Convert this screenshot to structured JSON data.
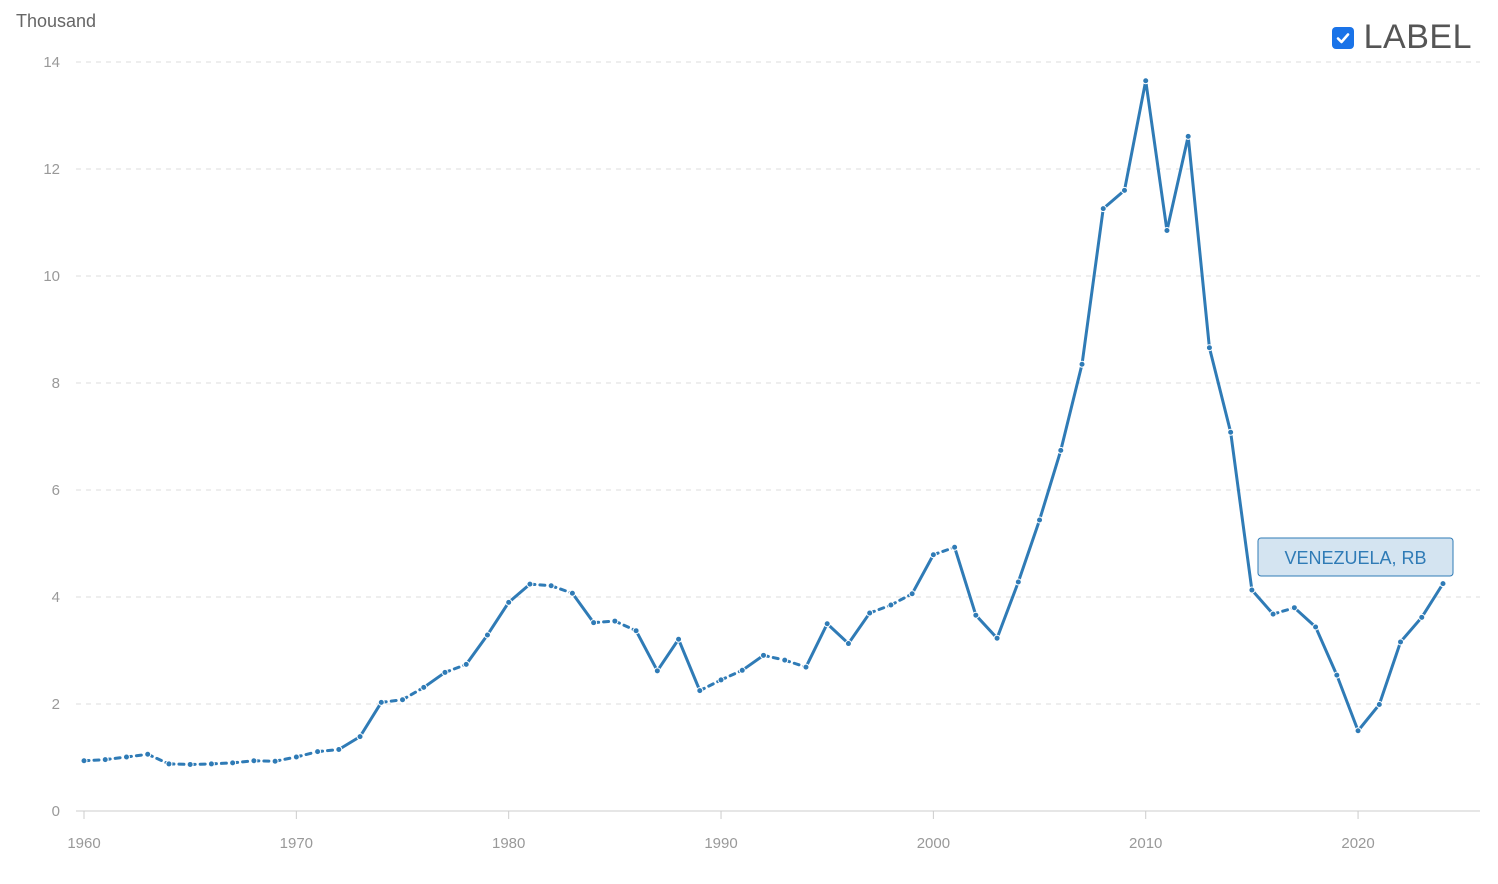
{
  "unit_label": "Thousand",
  "legend": {
    "checkbox_checked": true,
    "label": "LABEL",
    "checkbox_color": "#1a73e8"
  },
  "chart_data": {
    "type": "line",
    "title": "",
    "xlabel": "",
    "ylabel": "Thousand",
    "xlim": [
      1960,
      2024
    ],
    "ylim": [
      0,
      14
    ],
    "x_ticks": [
      "1960",
      "1970",
      "1980",
      "1990",
      "2000",
      "2010",
      "2020"
    ],
    "y_ticks": [
      "0",
      "2",
      "4",
      "6",
      "8",
      "10",
      "12",
      "14"
    ],
    "grid": true,
    "series": [
      {
        "name": "VENEZUELA, RB",
        "color": "#2f7bb6",
        "label_fill": "#d4e4f1",
        "x": [
          1960,
          1961,
          1962,
          1963,
          1964,
          1965,
          1966,
          1967,
          1968,
          1969,
          1970,
          1971,
          1972,
          1973,
          1974,
          1975,
          1976,
          1977,
          1978,
          1979,
          1980,
          1981,
          1982,
          1983,
          1984,
          1985,
          1986,
          1987,
          1988,
          1989,
          1990,
          1991,
          1992,
          1993,
          1994,
          1995,
          1996,
          1997,
          1998,
          1999,
          2000,
          2001,
          2002,
          2003,
          2004,
          2005,
          2006,
          2007,
          2008,
          2009,
          2010,
          2011,
          2012,
          2013,
          2014,
          2015,
          2016,
          2017,
          2018,
          2019,
          2020,
          2021,
          2022,
          2023,
          2024
        ],
        "y": [
          0.94,
          0.96,
          1.01,
          1.06,
          0.88,
          0.87,
          0.88,
          0.9,
          0.94,
          0.93,
          1.01,
          1.11,
          1.15,
          1.39,
          2.03,
          2.08,
          2.31,
          2.59,
          2.74,
          3.29,
          3.9,
          4.24,
          4.21,
          4.07,
          3.52,
          3.55,
          3.37,
          2.62,
          3.21,
          2.25,
          2.45,
          2.63,
          2.91,
          2.82,
          2.69,
          3.5,
          3.13,
          3.7,
          3.85,
          4.06,
          4.79,
          4.93,
          3.66,
          3.23,
          4.28,
          5.44,
          6.74,
          8.35,
          11.26,
          11.6,
          13.65,
          10.85,
          12.61,
          8.66,
          7.08,
          4.13,
          3.68,
          3.8,
          3.44,
          2.54,
          1.5,
          1.99,
          3.16,
          3.62,
          4.25
        ]
      }
    ]
  }
}
